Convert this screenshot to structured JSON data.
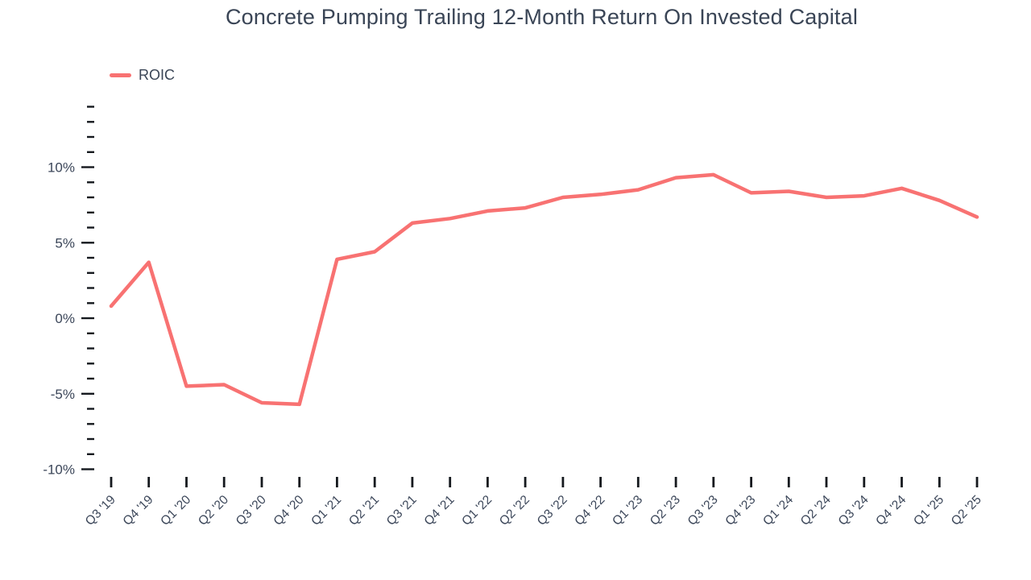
{
  "chart_data": {
    "type": "line",
    "title": "Concrete Pumping Trailing 12-Month Return On Invested Capital",
    "legend": [
      {
        "label": "ROIC"
      }
    ],
    "legend_position": "top-left",
    "grid": false,
    "categories": [
      "Q3 '19",
      "Q4 '19",
      "Q1 '20",
      "Q2 '20",
      "Q3 '20",
      "Q4 '20",
      "Q1 '21",
      "Q2 '21",
      "Q3 '21",
      "Q4 '21",
      "Q1 '22",
      "Q2 '22",
      "Q3 '22",
      "Q4 '22",
      "Q1 '23",
      "Q2 '23",
      "Q3 '23",
      "Q4 '23",
      "Q1 '24",
      "Q2 '24",
      "Q3 '24",
      "Q4 '24",
      "Q1 '25",
      "Q2 '25"
    ],
    "series": [
      {
        "name": "ROIC",
        "unit": "%",
        "color": "#f87272",
        "values": [
          0.8,
          3.7,
          -4.5,
          -4.4,
          -5.6,
          -5.7,
          3.9,
          4.4,
          6.3,
          6.6,
          7.1,
          7.3,
          8.0,
          8.2,
          8.5,
          9.3,
          9.5,
          8.3,
          8.4,
          8.0,
          8.1,
          8.6,
          7.8,
          6.7
        ]
      }
    ],
    "xlabel": "",
    "ylabel": "",
    "y_axis": {
      "min": -10,
      "max": 14,
      "minor_step": 1,
      "major_step": 5,
      "tick_labels": [
        {
          "value": -10,
          "label": "-10%"
        },
        {
          "value": -5,
          "label": "-5%"
        },
        {
          "value": 0,
          "label": "0%"
        },
        {
          "value": 5,
          "label": "5%"
        },
        {
          "value": 10,
          "label": "10%"
        }
      ]
    },
    "colors": {
      "line": "#f87272",
      "text": "#3b4659",
      "tick": "#15191e",
      "background": "#ffffff"
    }
  }
}
